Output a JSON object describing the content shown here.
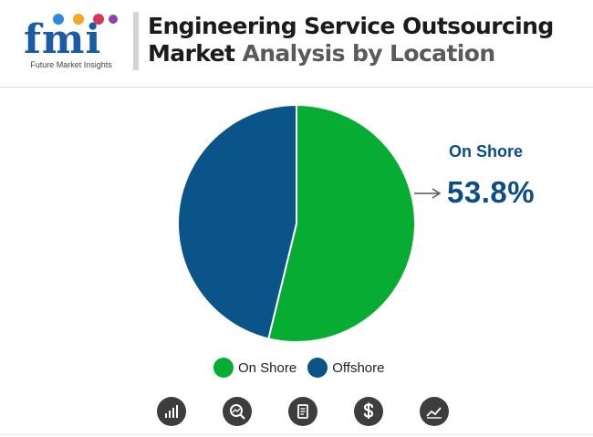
{
  "header": {
    "logo_text": "fmi",
    "logo_tagline": "Future Market Insights",
    "title_line1": "Engineering Service Outsourcing",
    "title_line2_bold": "Market",
    "title_line2_rest": " Analysis by Location"
  },
  "colors": {
    "on_shore": "#07ad32",
    "offshore": "#0b5489",
    "accent_text": "#0c4d88"
  },
  "chart_data": {
    "type": "pie",
    "title": "Engineering Service Outsourcing Market Analysis by Location",
    "labels": [
      "On Shore",
      "Offshore"
    ],
    "values": [
      53.8,
      46.2
    ],
    "unit": "%",
    "legend_position": "bottom"
  },
  "callout": {
    "label": "On Shore",
    "value": "53.8%"
  },
  "legend": [
    {
      "label": "On Shore"
    },
    {
      "label": "Offshore"
    }
  ],
  "footer_icons": [
    "bar-chart-icon",
    "magnifier-chart-icon",
    "report-document-icon",
    "dollar-icon",
    "line-chart-icon"
  ]
}
